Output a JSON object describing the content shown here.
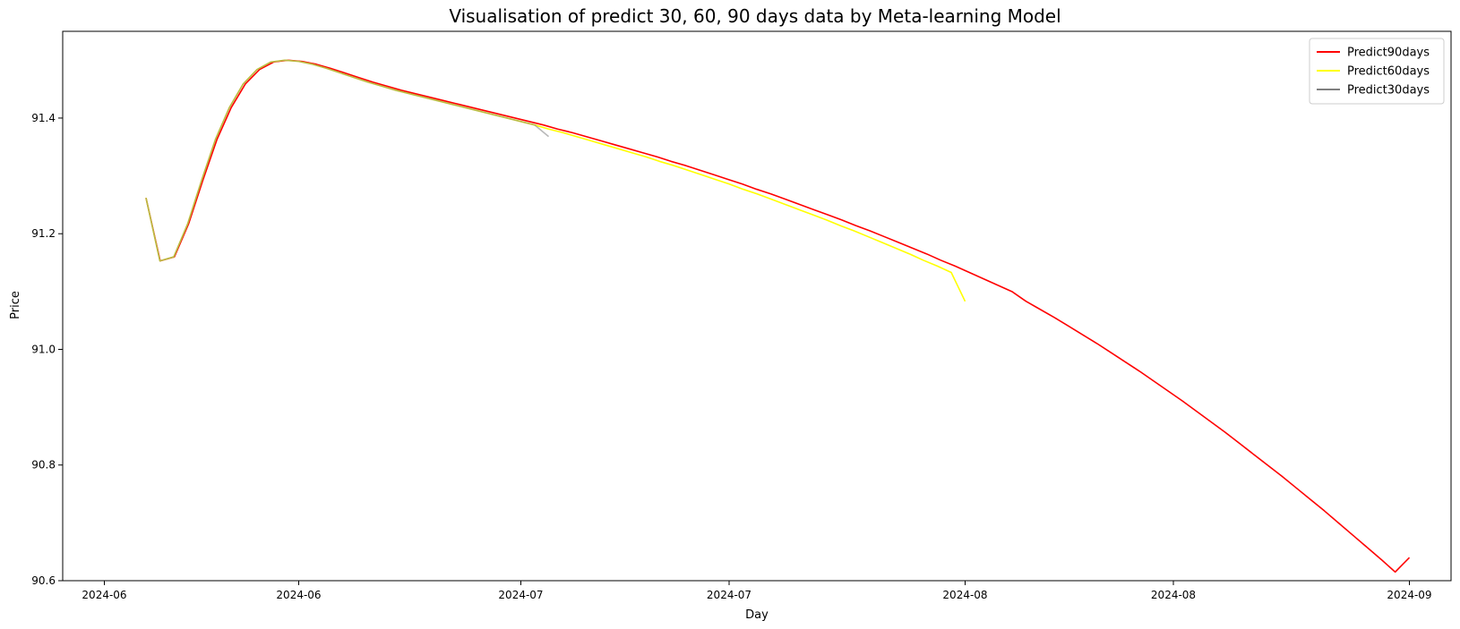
{
  "chart_data": {
    "type": "line",
    "title": "Visualisation of predict 30, 60, 90 days data by Meta-learning Model",
    "xlabel": "Day",
    "ylabel": "Price",
    "xlim": [
      -3,
      97
    ],
    "ylim": [
      90.6,
      91.55
    ],
    "y_ticks": [
      90.6,
      90.8,
      91.0,
      91.2,
      91.4
    ],
    "y_tick_labels": [
      "90.6",
      "90.8",
      "91.0",
      "91.2",
      "91.4"
    ],
    "x_ticks": [
      0,
      14,
      30,
      45,
      62,
      77,
      94
    ],
    "x_tick_labels": [
      "2024-06",
      "2024-06",
      "2024-07",
      "2024-07",
      "2024-08",
      "2024-08",
      "2024-09"
    ],
    "grid": false,
    "legend_position": "top-right",
    "series": [
      {
        "name": "Predict90days",
        "color": "#ff0000",
        "x_range": [
          3,
          94
        ],
        "y": [
          91.262,
          91.153,
          91.16,
          91.217,
          91.292,
          91.363,
          91.418,
          91.459,
          91.484,
          91.497,
          91.5,
          91.498,
          91.493,
          91.486,
          91.478,
          91.47,
          91.462,
          91.455,
          91.448,
          91.442,
          91.436,
          91.43,
          91.424,
          91.418,
          91.412,
          91.406,
          91.4,
          91.394,
          91.388,
          91.381,
          91.375,
          91.368,
          91.361,
          91.354,
          91.347,
          91.34,
          91.333,
          91.325,
          91.318,
          91.31,
          91.302,
          91.294,
          91.286,
          91.277,
          91.269,
          91.26,
          91.251,
          91.242,
          91.233,
          91.224,
          91.214,
          91.205,
          91.195,
          91.185,
          91.175,
          91.165,
          91.154,
          91.144,
          91.133,
          91.122,
          91.111,
          91.1,
          91.083,
          91.069,
          91.055,
          91.04,
          91.025,
          91.01,
          90.994,
          90.978,
          90.962,
          90.945,
          90.928,
          90.911,
          90.893,
          90.875,
          90.857,
          90.838,
          90.819,
          90.8,
          90.781,
          90.761,
          90.741,
          90.721,
          90.7,
          90.679,
          90.658,
          90.637,
          90.615,
          90.64
        ]
      },
      {
        "name": "Predict60days",
        "color": "#ffff00",
        "x_range": [
          3,
          62
        ],
        "y": [
          91.262,
          91.153,
          91.16,
          91.217,
          91.292,
          91.363,
          91.418,
          91.459,
          91.484,
          91.497,
          91.5,
          91.498,
          91.493,
          91.486,
          91.478,
          91.47,
          91.462,
          91.455,
          91.448,
          91.442,
          91.436,
          91.43,
          91.424,
          91.418,
          91.412,
          91.406,
          91.4,
          91.394,
          91.388,
          91.381,
          91.375,
          91.368,
          91.361,
          91.354,
          91.347,
          91.34,
          91.333,
          91.325,
          91.318,
          91.31,
          91.302,
          91.294,
          91.286,
          91.277,
          91.269,
          91.26,
          91.251,
          91.242,
          91.233,
          91.224,
          91.214,
          91.205,
          91.195,
          91.185,
          91.175,
          91.165,
          91.154,
          91.144,
          91.133,
          91.083
        ]
      },
      {
        "name": "Predict30days",
        "color": "#7f7f7f",
        "x_range": [
          3,
          32
        ],
        "y": [
          91.262,
          91.153,
          91.16,
          91.217,
          91.292,
          91.363,
          91.418,
          91.459,
          91.484,
          91.497,
          91.5,
          91.498,
          91.493,
          91.486,
          91.478,
          91.47,
          91.462,
          91.455,
          91.448,
          91.442,
          91.436,
          91.43,
          91.424,
          91.418,
          91.412,
          91.406,
          91.4,
          91.394,
          91.388,
          91.368
        ]
      }
    ]
  }
}
